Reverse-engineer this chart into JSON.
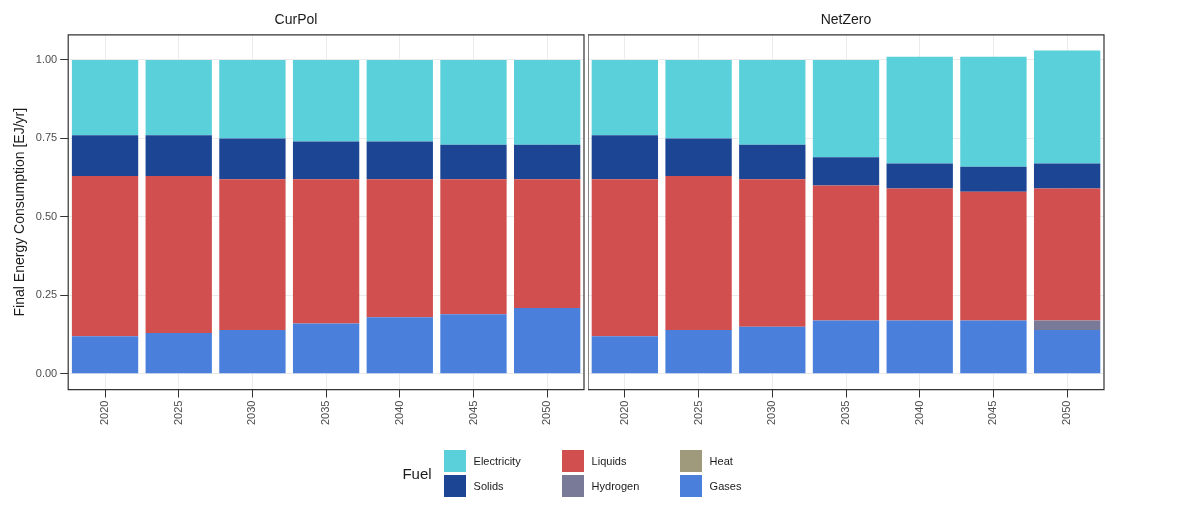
{
  "chart_data": [
    {
      "type": "bar",
      "title": "CurPol",
      "ylabel": "Final Energy Consumption [EJ/yr]",
      "legend_title": "Fuel",
      "stacked": true,
      "grid": true,
      "legend": "bottom",
      "categories": [
        "2020",
        "2025",
        "2030",
        "2035",
        "2040",
        "2045",
        "2050"
      ],
      "ylim": [
        -0.05,
        1.08
      ],
      "yticks": [
        {
          "value": 0,
          "label": "0.00"
        },
        {
          "value": 0.25,
          "label": "0.25"
        },
        {
          "value": 0.5,
          "label": "0.50"
        },
        {
          "value": 0.75,
          "label": "0.75"
        },
        {
          "value": 1,
          "label": "1.00"
        }
      ],
      "series": [
        {
          "name": "Gases",
          "color": "#4a7fdc",
          "values": [
            0.12,
            0.13,
            0.14,
            0.16,
            0.18,
            0.19,
            0.21
          ]
        },
        {
          "name": "Heat",
          "color": "#a09a7c",
          "values": [
            0,
            0,
            0,
            0,
            0,
            0,
            0
          ]
        },
        {
          "name": "Hydrogen",
          "color": "#787a98",
          "values": [
            0,
            0,
            0,
            0,
            0,
            0,
            0
          ]
        },
        {
          "name": "Liquids",
          "color": "#d24f4f",
          "values": [
            0.51,
            0.5,
            0.48,
            0.46,
            0.44,
            0.43,
            0.41
          ]
        },
        {
          "name": "Solids",
          "color": "#1c4594",
          "values": [
            0.13,
            0.13,
            0.13,
            0.12,
            0.12,
            0.11,
            0.11
          ]
        },
        {
          "name": "Electricity",
          "color": "#5ad0da",
          "values": [
            0.24,
            0.24,
            0.25,
            0.26,
            0.26,
            0.27,
            0.27
          ]
        }
      ]
    },
    {
      "type": "bar",
      "title": "NetZero",
      "stacked": true,
      "grid": true,
      "tick_labels": "x",
      "categories": [
        "2020",
        "2025",
        "2030",
        "2035",
        "2040",
        "2045",
        "2050"
      ],
      "ylim": [
        -0.05,
        1.08
      ],
      "yticks": [
        0,
        0.25,
        0.5,
        0.75,
        1
      ],
      "series": [
        {
          "color": "#4a7fdc",
          "values": [
            0.12,
            0.14,
            0.15,
            0.17,
            0.17,
            0.17,
            0.14
          ]
        },
        {
          "color": "#a09a7c",
          "values": [
            0,
            0,
            0,
            0,
            0,
            0,
            0
          ]
        },
        {
          "color": "#787a98",
          "values": [
            0,
            0,
            0,
            0,
            0,
            0,
            0.03
          ]
        },
        {
          "color": "#d24f4f",
          "values": [
            0.5,
            0.49,
            0.47,
            0.43,
            0.42,
            0.41,
            0.42
          ]
        },
        {
          "color": "#1c4594",
          "values": [
            0.14,
            0.12,
            0.11,
            0.09,
            0.08,
            0.08,
            0.08
          ]
        },
        {
          "color": "#5ad0da",
          "values": [
            0.24,
            0.25,
            0.27,
            0.31,
            0.34,
            0.35,
            0.36
          ]
        }
      ]
    }
  ]
}
